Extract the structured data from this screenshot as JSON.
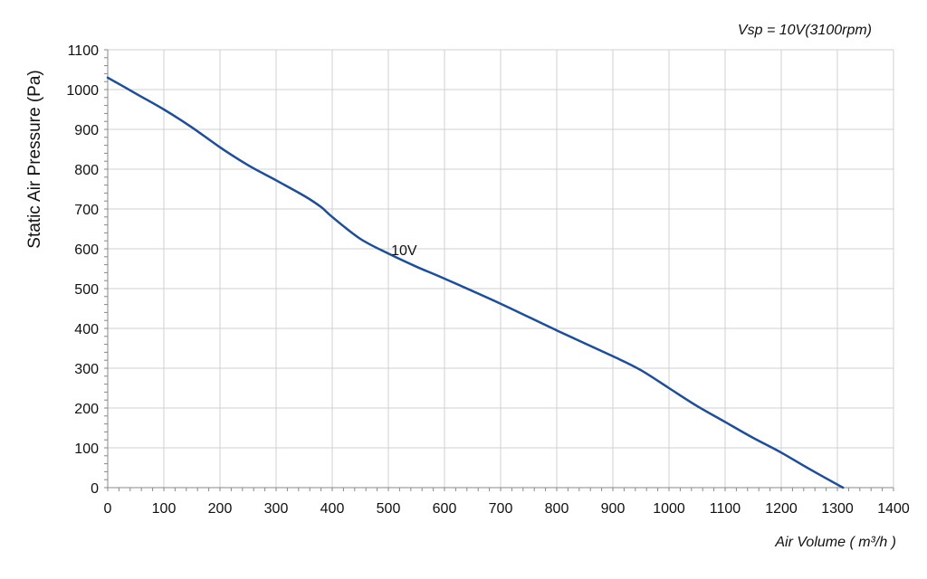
{
  "chart_data": {
    "type": "line",
    "title": "",
    "subtitle": "Vsp = 10V(3100rpm)",
    "xlabel": "Air Volume ( m³/h )",
    "ylabel": "Static Air Pressure  (Pa)",
    "xlim": [
      0,
      1400
    ],
    "ylim": [
      0,
      1100
    ],
    "xticks": [
      0,
      100,
      200,
      300,
      400,
      500,
      600,
      700,
      800,
      900,
      1000,
      1100,
      1200,
      1300,
      1400
    ],
    "yticks": [
      0,
      100,
      200,
      300,
      400,
      500,
      600,
      700,
      800,
      900,
      1000,
      1100
    ],
    "grid": true,
    "colors": {
      "line": "#1f4e96",
      "grid": "#d0d0d0",
      "axis": "#888888"
    },
    "series": [
      {
        "name": "10V",
        "x": [
          0,
          50,
          100,
          150,
          200,
          250,
          300,
          350,
          380,
          400,
          450,
          500,
          550,
          600,
          700,
          800,
          900,
          950,
          1000,
          1050,
          1100,
          1150,
          1200,
          1250,
          1310
        ],
        "y": [
          1030,
          990,
          950,
          905,
          855,
          810,
          772,
          733,
          705,
          680,
          625,
          588,
          555,
          525,
          462,
          395,
          330,
          295,
          250,
          205,
          165,
          125,
          88,
          47,
          0
        ]
      }
    ],
    "annotations": [
      {
        "text": "10V",
        "x": 505,
        "y": 598
      }
    ]
  }
}
